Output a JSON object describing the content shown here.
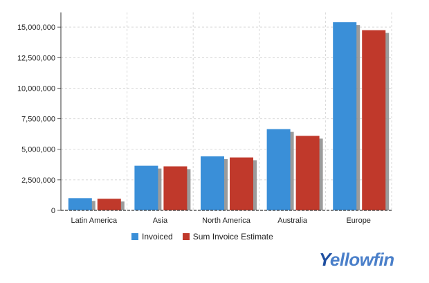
{
  "chart_data": {
    "type": "bar",
    "categories": [
      "Latin America",
      "Asia",
      "North America",
      "Australia",
      "Europe"
    ],
    "series": [
      {
        "name": "Invoiced",
        "color": "#3a8fd8",
        "values": [
          1000000,
          3650000,
          4420000,
          6650000,
          15400000
        ]
      },
      {
        "name": "Sum Invoice Estimate",
        "color": "#c0392b",
        "values": [
          950000,
          3600000,
          4330000,
          6100000,
          14750000
        ]
      }
    ],
    "y_ticks": [
      0,
      2500000,
      5000000,
      7500000,
      10000000,
      12500000,
      15000000
    ],
    "y_tick_labels": [
      "0",
      "2,500,000",
      "5,000,000",
      "7,500,000",
      "10,000,000",
      "12,500,000",
      "15,000,000"
    ],
    "ylim": [
      0,
      16200000
    ],
    "grid": true,
    "legend_position": "bottom",
    "title": "",
    "xlabel": "",
    "ylabel": ""
  },
  "legend": {
    "items": [
      {
        "label": "Invoiced",
        "color": "#3a8fd8"
      },
      {
        "label": "Sum Invoice Estimate",
        "color": "#c0392b"
      }
    ]
  },
  "branding": {
    "logo_first": "Y",
    "logo_rest": "ellowfin"
  }
}
